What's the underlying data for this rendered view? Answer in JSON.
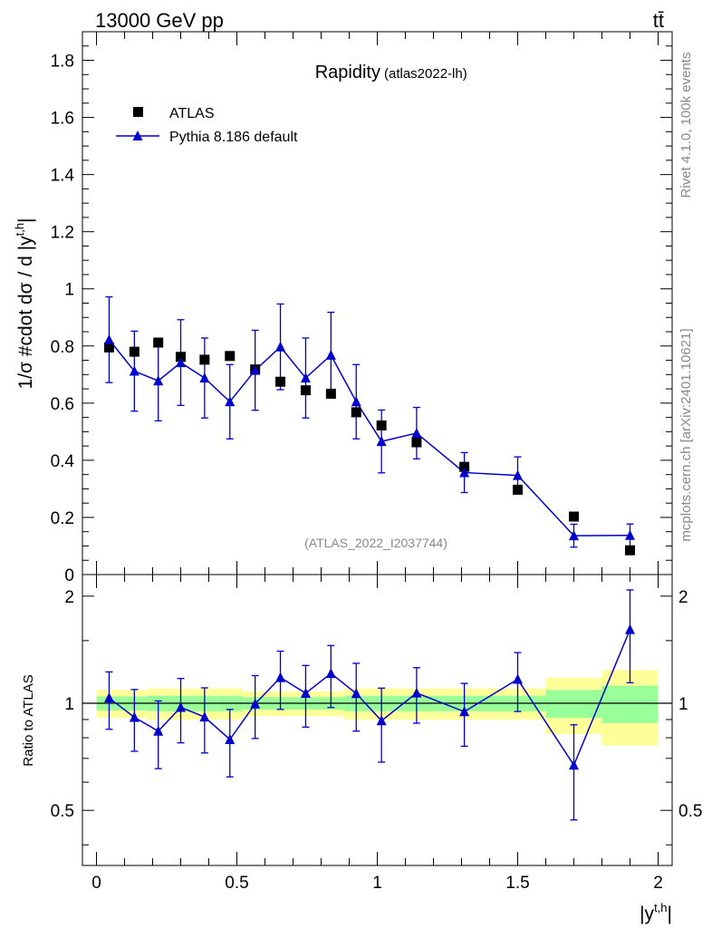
{
  "header": {
    "left_text": "13000 GeV pp",
    "right_text": "tt̄"
  },
  "side_labels": {
    "rivet": "Rivet 4.1.0,  100k events",
    "mcplots": "mcplots.cern.ch [arXiv:2401.10621]"
  },
  "chart_data": {
    "type": "scatter",
    "title": "Rapidity",
    "subtitle": "(atlas2022-lh)",
    "watermark": "(ATLAS_2022_I2037744)",
    "ylabel": "1/σ #cdot dσ / d |y^{t,h}|",
    "ylabel_text": "1/σ #cdot dσ / d |y",
    "ylabel_sup": "t,h",
    "ylabel_close": "|",
    "xlabel_text": "|y",
    "xlabel_sup": "t,h",
    "xlabel_close": "|",
    "ratio_ylabel": "Ratio to ATLAS",
    "xlim": [
      -0.05,
      2.05
    ],
    "ylim": [
      0,
      1.9
    ],
    "ratio_ylim": [
      0.35,
      2.3
    ],
    "x_ticks": [
      0,
      0.5,
      1,
      1.5,
      2
    ],
    "x_tick_labels": [
      "0",
      "0.5",
      "1",
      "1.5",
      "2"
    ],
    "y_ticks": [
      0,
      0.2,
      0.4,
      0.6,
      0.8,
      1,
      1.2,
      1.4,
      1.6,
      1.8
    ],
    "y_tick_labels": [
      "0",
      "0.2",
      "0.4",
      "0.6",
      "0.8",
      "1",
      "1.2",
      "1.4",
      "1.6",
      "1.8"
    ],
    "ratio_ticks": [
      0.5,
      1,
      2
    ],
    "ratio_tick_labels": [
      "0.5",
      "1",
      "2"
    ],
    "bin_edges": [
      0,
      0.09,
      0.18,
      0.26,
      0.34,
      0.43,
      0.52,
      0.61,
      0.7,
      0.79,
      0.88,
      0.97,
      1.06,
      1.22,
      1.4,
      1.6,
      1.8,
      2.0
    ],
    "x": [
      0.045,
      0.135,
      0.22,
      0.3,
      0.385,
      0.475,
      0.565,
      0.655,
      0.745,
      0.835,
      0.925,
      1.015,
      1.14,
      1.31,
      1.5,
      1.7,
      1.9
    ],
    "series": [
      {
        "name": "ATLAS",
        "marker": "square",
        "color": "#000000",
        "values": [
          0.795,
          0.78,
          0.812,
          0.762,
          0.752,
          0.765,
          0.718,
          0.675,
          0.645,
          0.633,
          0.568,
          0.522,
          0.463,
          0.377,
          0.297,
          0.203,
          0.085
        ],
        "rel_unc": [
          0.045,
          0.045,
          0.05,
          0.05,
          0.05,
          0.05,
          0.04,
          0.04,
          0.04,
          0.04,
          0.05,
          0.05,
          0.05,
          0.05,
          0.05,
          0.09,
          0.12
        ]
      },
      {
        "name": "Pythia 8.186 default",
        "marker": "triangle",
        "color": "#0000cc",
        "values": [
          0.822,
          0.712,
          0.678,
          0.742,
          0.688,
          0.605,
          0.715,
          0.797,
          0.688,
          0.768,
          0.605,
          0.466,
          0.495,
          0.357,
          0.347,
          0.136,
          0.137
        ],
        "err": [
          0.15,
          0.14,
          0.14,
          0.15,
          0.14,
          0.13,
          0.14,
          0.15,
          0.14,
          0.15,
          0.13,
          0.11,
          0.09,
          0.07,
          0.065,
          0.04,
          0.04
        ]
      }
    ],
    "ratio": {
      "values": [
        1.035,
        0.913,
        0.835,
        0.974,
        0.915,
        0.791,
        0.996,
        1.181,
        1.067,
        1.213,
        1.065,
        0.893,
        1.069,
        0.947,
        1.168,
        0.67,
        1.612
      ],
      "err_up": [
        0.19,
        0.18,
        0.18,
        0.2,
        0.19,
        0.17,
        0.2,
        0.22,
        0.21,
        0.24,
        0.23,
        0.21,
        0.19,
        0.19,
        0.22,
        0.2,
        0.47
      ],
      "err_dn": [
        0.19,
        0.18,
        0.18,
        0.2,
        0.19,
        0.17,
        0.2,
        0.22,
        0.21,
        0.24,
        0.23,
        0.21,
        0.19,
        0.19,
        0.22,
        0.2,
        0.47
      ]
    }
  }
}
